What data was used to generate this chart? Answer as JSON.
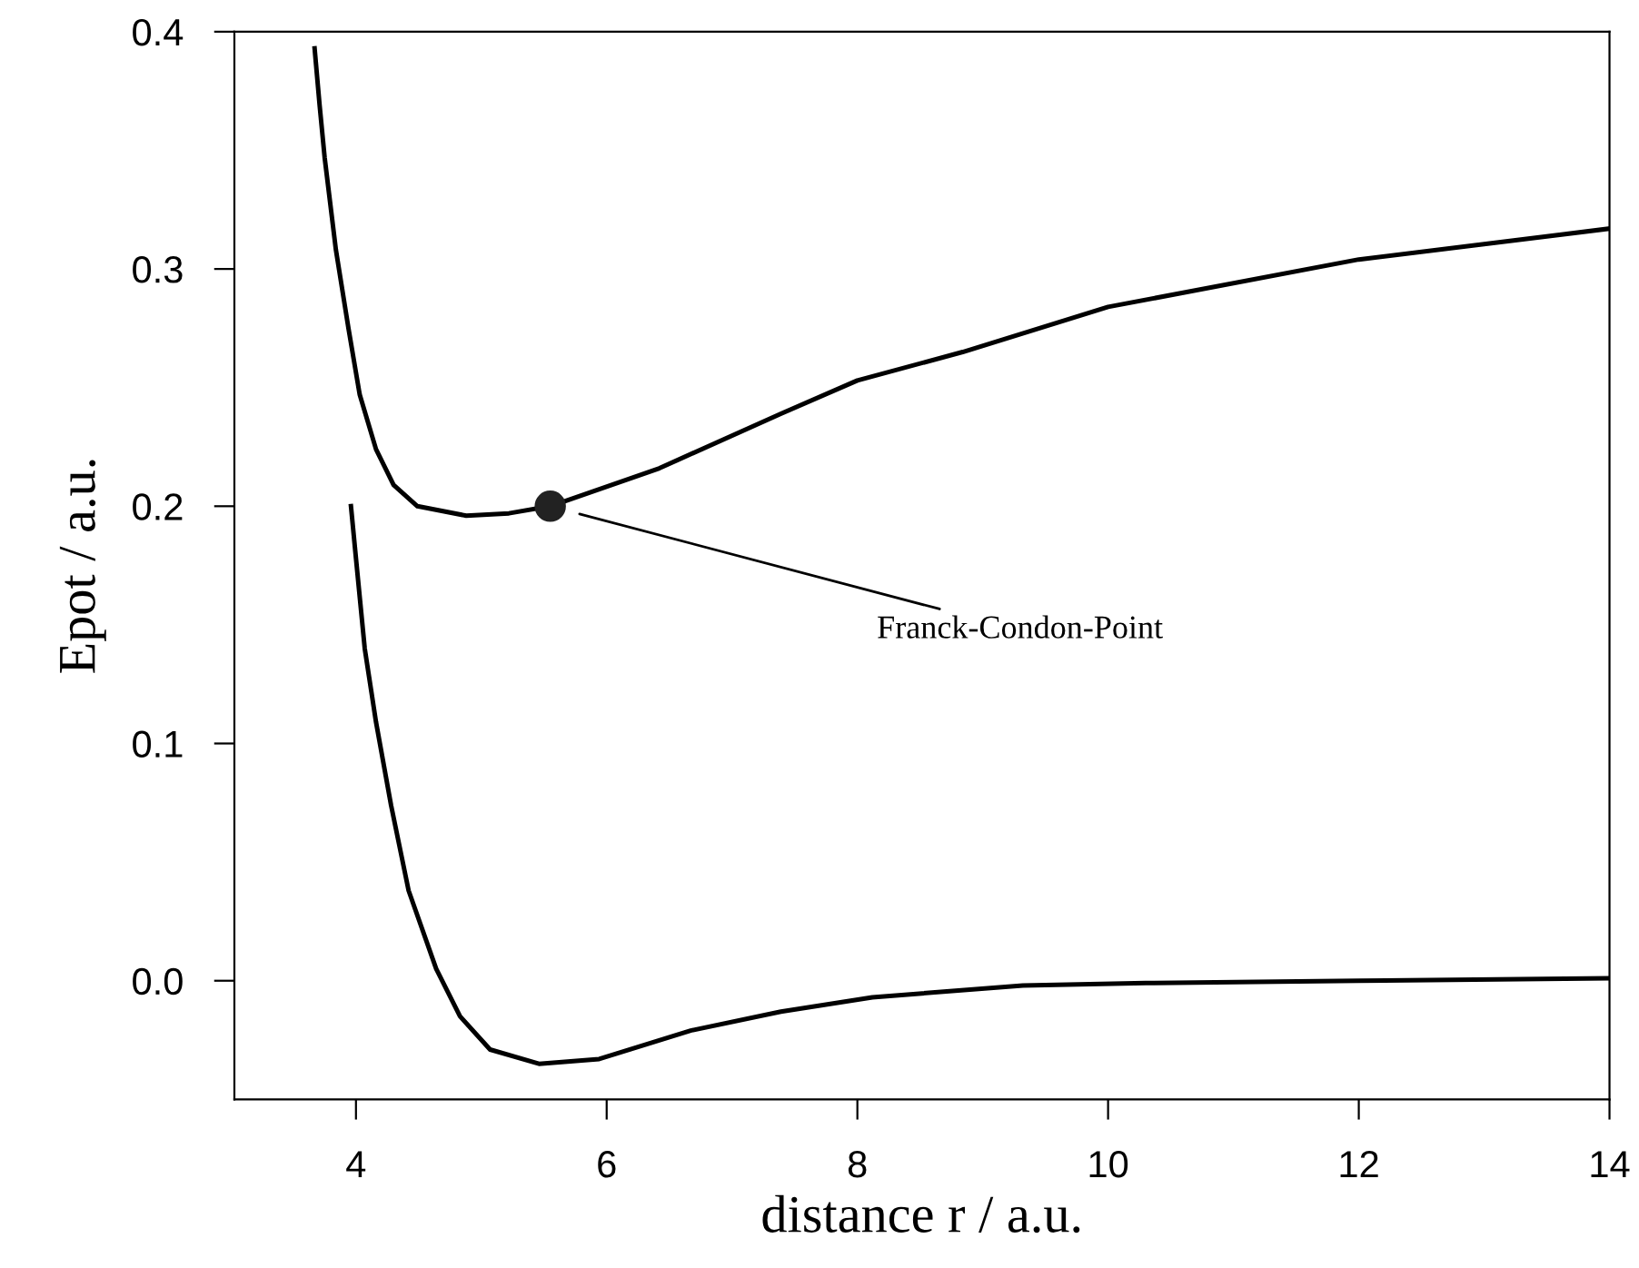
{
  "chart_data": {
    "type": "line",
    "xlabel": "distance r / a.u.",
    "ylabel": "Epot / a.u.",
    "xlim": [
      3.03,
      14
    ],
    "xticks": [
      4,
      6,
      8,
      10,
      12,
      14
    ],
    "ylim": [
      -0.05,
      0.4
    ],
    "yticks": [
      {
        "value": 0.0,
        "label": "0.0"
      },
      0.1,
      0.2,
      0.3,
      0.4
    ],
    "grid": false,
    "legend": false,
    "series": [
      {
        "color": "#000000",
        "x": [
          3.67,
          3.71,
          3.75,
          3.84,
          3.94,
          4.03,
          4.16,
          4.3,
          4.49,
          4.88,
          5.22,
          5.55,
          6.42,
          7.39,
          8.0,
          8.84,
          10.0,
          12.0,
          14.0
        ],
        "values": [
          0.393,
          0.369,
          0.347,
          0.308,
          0.275,
          0.247,
          0.224,
          0.209,
          0.2,
          0.196,
          0.197,
          0.2,
          0.216,
          0.239,
          0.253,
          0.265,
          0.284,
          0.304,
          0.317
        ]
      },
      {
        "color": "#000000",
        "x": [
          3.96,
          4.0,
          4.07,
          4.16,
          4.28,
          4.42,
          4.64,
          4.83,
          5.07,
          5.46,
          5.94,
          6.67,
          7.39,
          8.12,
          9.32,
          10.3,
          12.0,
          14.0
        ],
        "values": [
          0.2,
          0.178,
          0.14,
          0.109,
          0.074,
          0.038,
          0.005,
          -0.015,
          -0.029,
          -0.035,
          -0.033,
          -0.021,
          -0.013,
          -0.007,
          -0.002,
          -0.001,
          0.0,
          0.001
        ]
      },
      {
        "type": "scatter",
        "marker": "circle",
        "color": "#222222",
        "x": [
          5.55
        ],
        "values": [
          0.2
        ]
      }
    ],
    "annotations": [
      "Franck-Condon-Point"
    ]
  }
}
